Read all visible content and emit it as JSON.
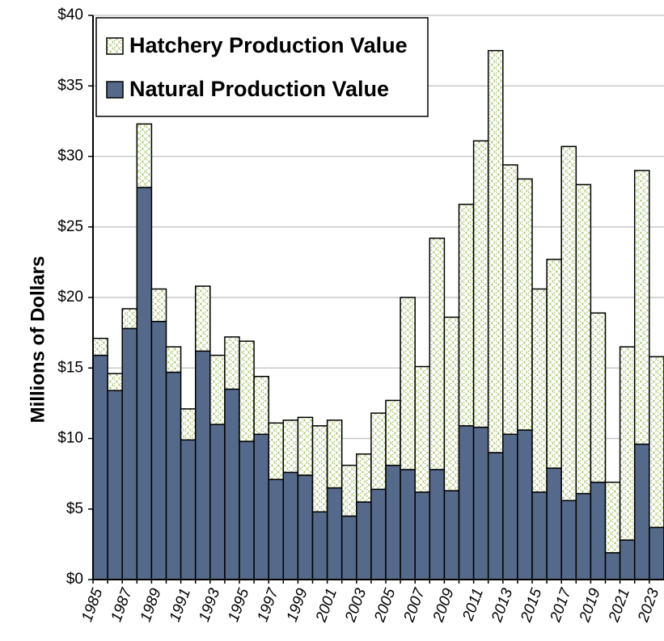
{
  "chart_data": {
    "type": "stacked_bar",
    "y_label": "Millions of Dollars",
    "categories": [
      "1985",
      null,
      "1987",
      null,
      "1989",
      null,
      "1991",
      null,
      "1993",
      null,
      "1995",
      null,
      "1997",
      null,
      "1999",
      null,
      "2001",
      null,
      "2003",
      null,
      "2005",
      null,
      "2007",
      null,
      "2009",
      null,
      "2011",
      null,
      "2013",
      null,
      "2015",
      null,
      "2017",
      null,
      "2019",
      null,
      "2021",
      null,
      "2023"
    ],
    "series": [
      {
        "name": "Natural Production Value",
        "color": "#55698a",
        "values": [
          15.9,
          13.4,
          17.8,
          27.8,
          18.3,
          14.7,
          9.9,
          16.2,
          11.0,
          13.5,
          9.8,
          10.3,
          7.1,
          7.6,
          7.4,
          4.8,
          6.5,
          4.5,
          5.5,
          6.4,
          8.1,
          7.8,
          6.2,
          7.8,
          6.3,
          10.9,
          10.8,
          9.0,
          10.3,
          10.6,
          6.2,
          7.9,
          5.6,
          6.1,
          6.9,
          1.9,
          2.8,
          9.6,
          3.7
        ]
      },
      {
        "name": "Hatchery Production Value",
        "color": "#9bbb59",
        "values": [
          1.2,
          1.2,
          1.4,
          4.5,
          2.3,
          1.8,
          2.2,
          4.6,
          4.9,
          3.7,
          7.1,
          4.1,
          4.0,
          3.7,
          4.1,
          6.1,
          4.8,
          3.6,
          3.4,
          5.4,
          4.6,
          12.2,
          8.9,
          16.4,
          12.3,
          15.7,
          20.3,
          28.5,
          19.1,
          17.8,
          14.4,
          14.8,
          25.1,
          21.9,
          12.0,
          5.0,
          13.7,
          19.4,
          12.1
        ]
      }
    ],
    "ylim": [
      0,
      40
    ],
    "yticks": [
      {
        "value": 0,
        "label": "$0"
      },
      {
        "value": 5,
        "label": "$5"
      },
      {
        "value": 10,
        "label": "$10"
      },
      {
        "value": 15,
        "label": "$15"
      },
      {
        "value": 20,
        "label": "$20"
      },
      {
        "value": 25,
        "label": "$25"
      },
      {
        "value": 30,
        "label": "$30"
      },
      {
        "value": 35,
        "label": "$35"
      },
      {
        "value": 40,
        "label": "$40"
      }
    ],
    "grid": true
  }
}
